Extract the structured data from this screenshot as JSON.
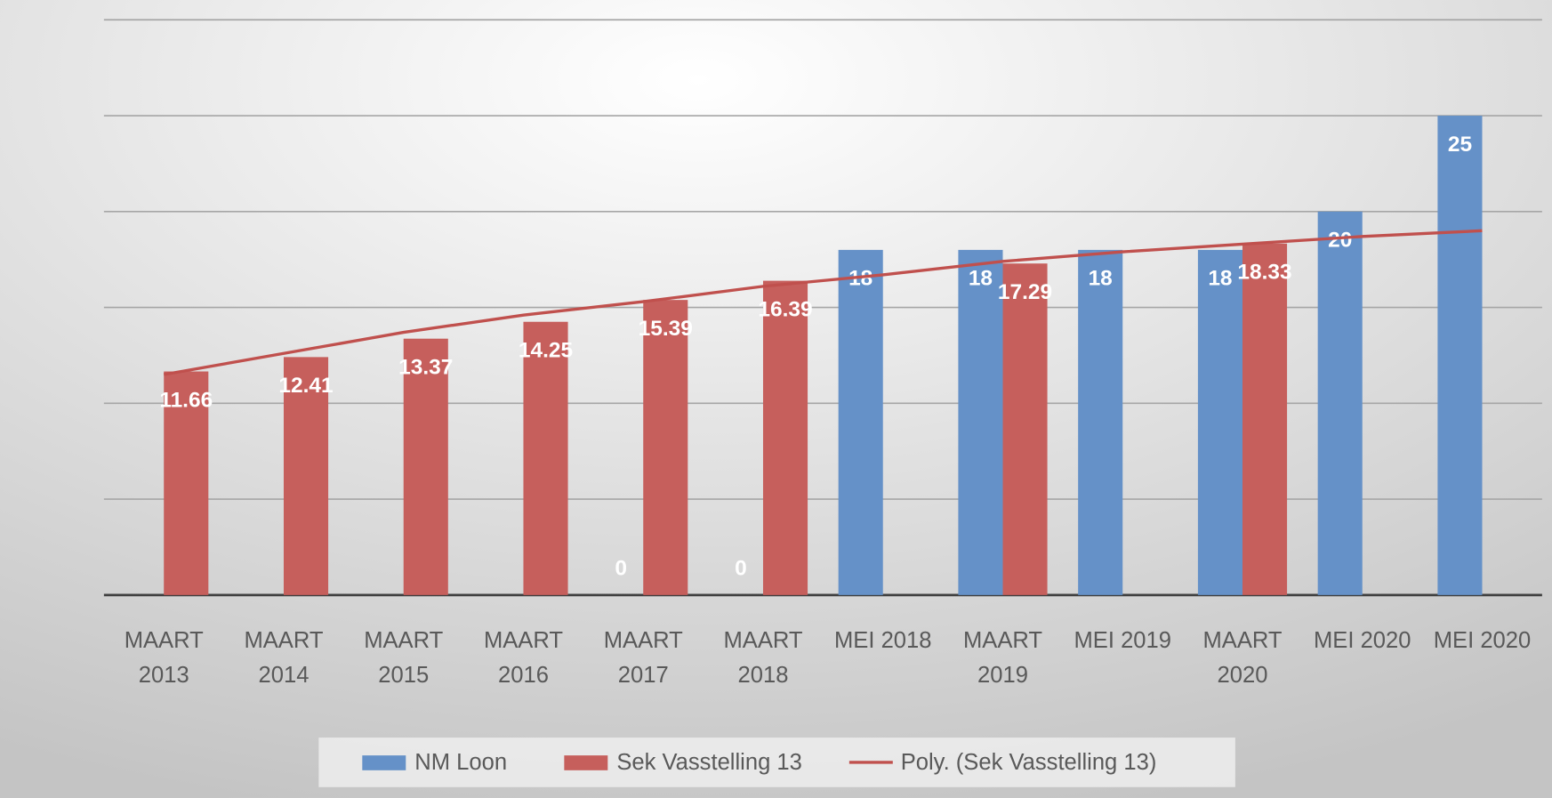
{
  "chart_data": {
    "type": "bar",
    "categories": [
      "MAART 2013",
      "MAART 2014",
      "MAART 2015",
      "MAART 2016",
      "MAART 2017",
      "MAART 2018",
      "MEI 2018",
      "MAART 2019",
      "MEI 2019",
      "MAART 2020",
      "MEI 2020",
      "MEI 2020"
    ],
    "series": [
      {
        "name": "NM Loon",
        "color": "#6591c8",
        "values": [
          null,
          null,
          null,
          null,
          0,
          0,
          18,
          18,
          18,
          18,
          20,
          25
        ]
      },
      {
        "name": "Sek Vasstelling 13",
        "color": "#c65f5c",
        "values": [
          11.66,
          12.41,
          13.37,
          14.25,
          15.39,
          16.39,
          null,
          17.29,
          null,
          18.33,
          null,
          null
        ]
      },
      {
        "name": "Poly. (Sek Vasstelling 13)",
        "type": "line",
        "color": "#c0504d",
        "values": [
          11.5,
          12.6,
          13.7,
          14.6,
          15.3,
          16.1,
          16.7,
          17.4,
          17.9,
          18.3,
          18.7,
          19.0
        ]
      }
    ],
    "ylim": [
      0,
      30
    ],
    "yticks": [
      0,
      5,
      10,
      15,
      20,
      25,
      30
    ],
    "grid": true,
    "legend": "bottom"
  }
}
